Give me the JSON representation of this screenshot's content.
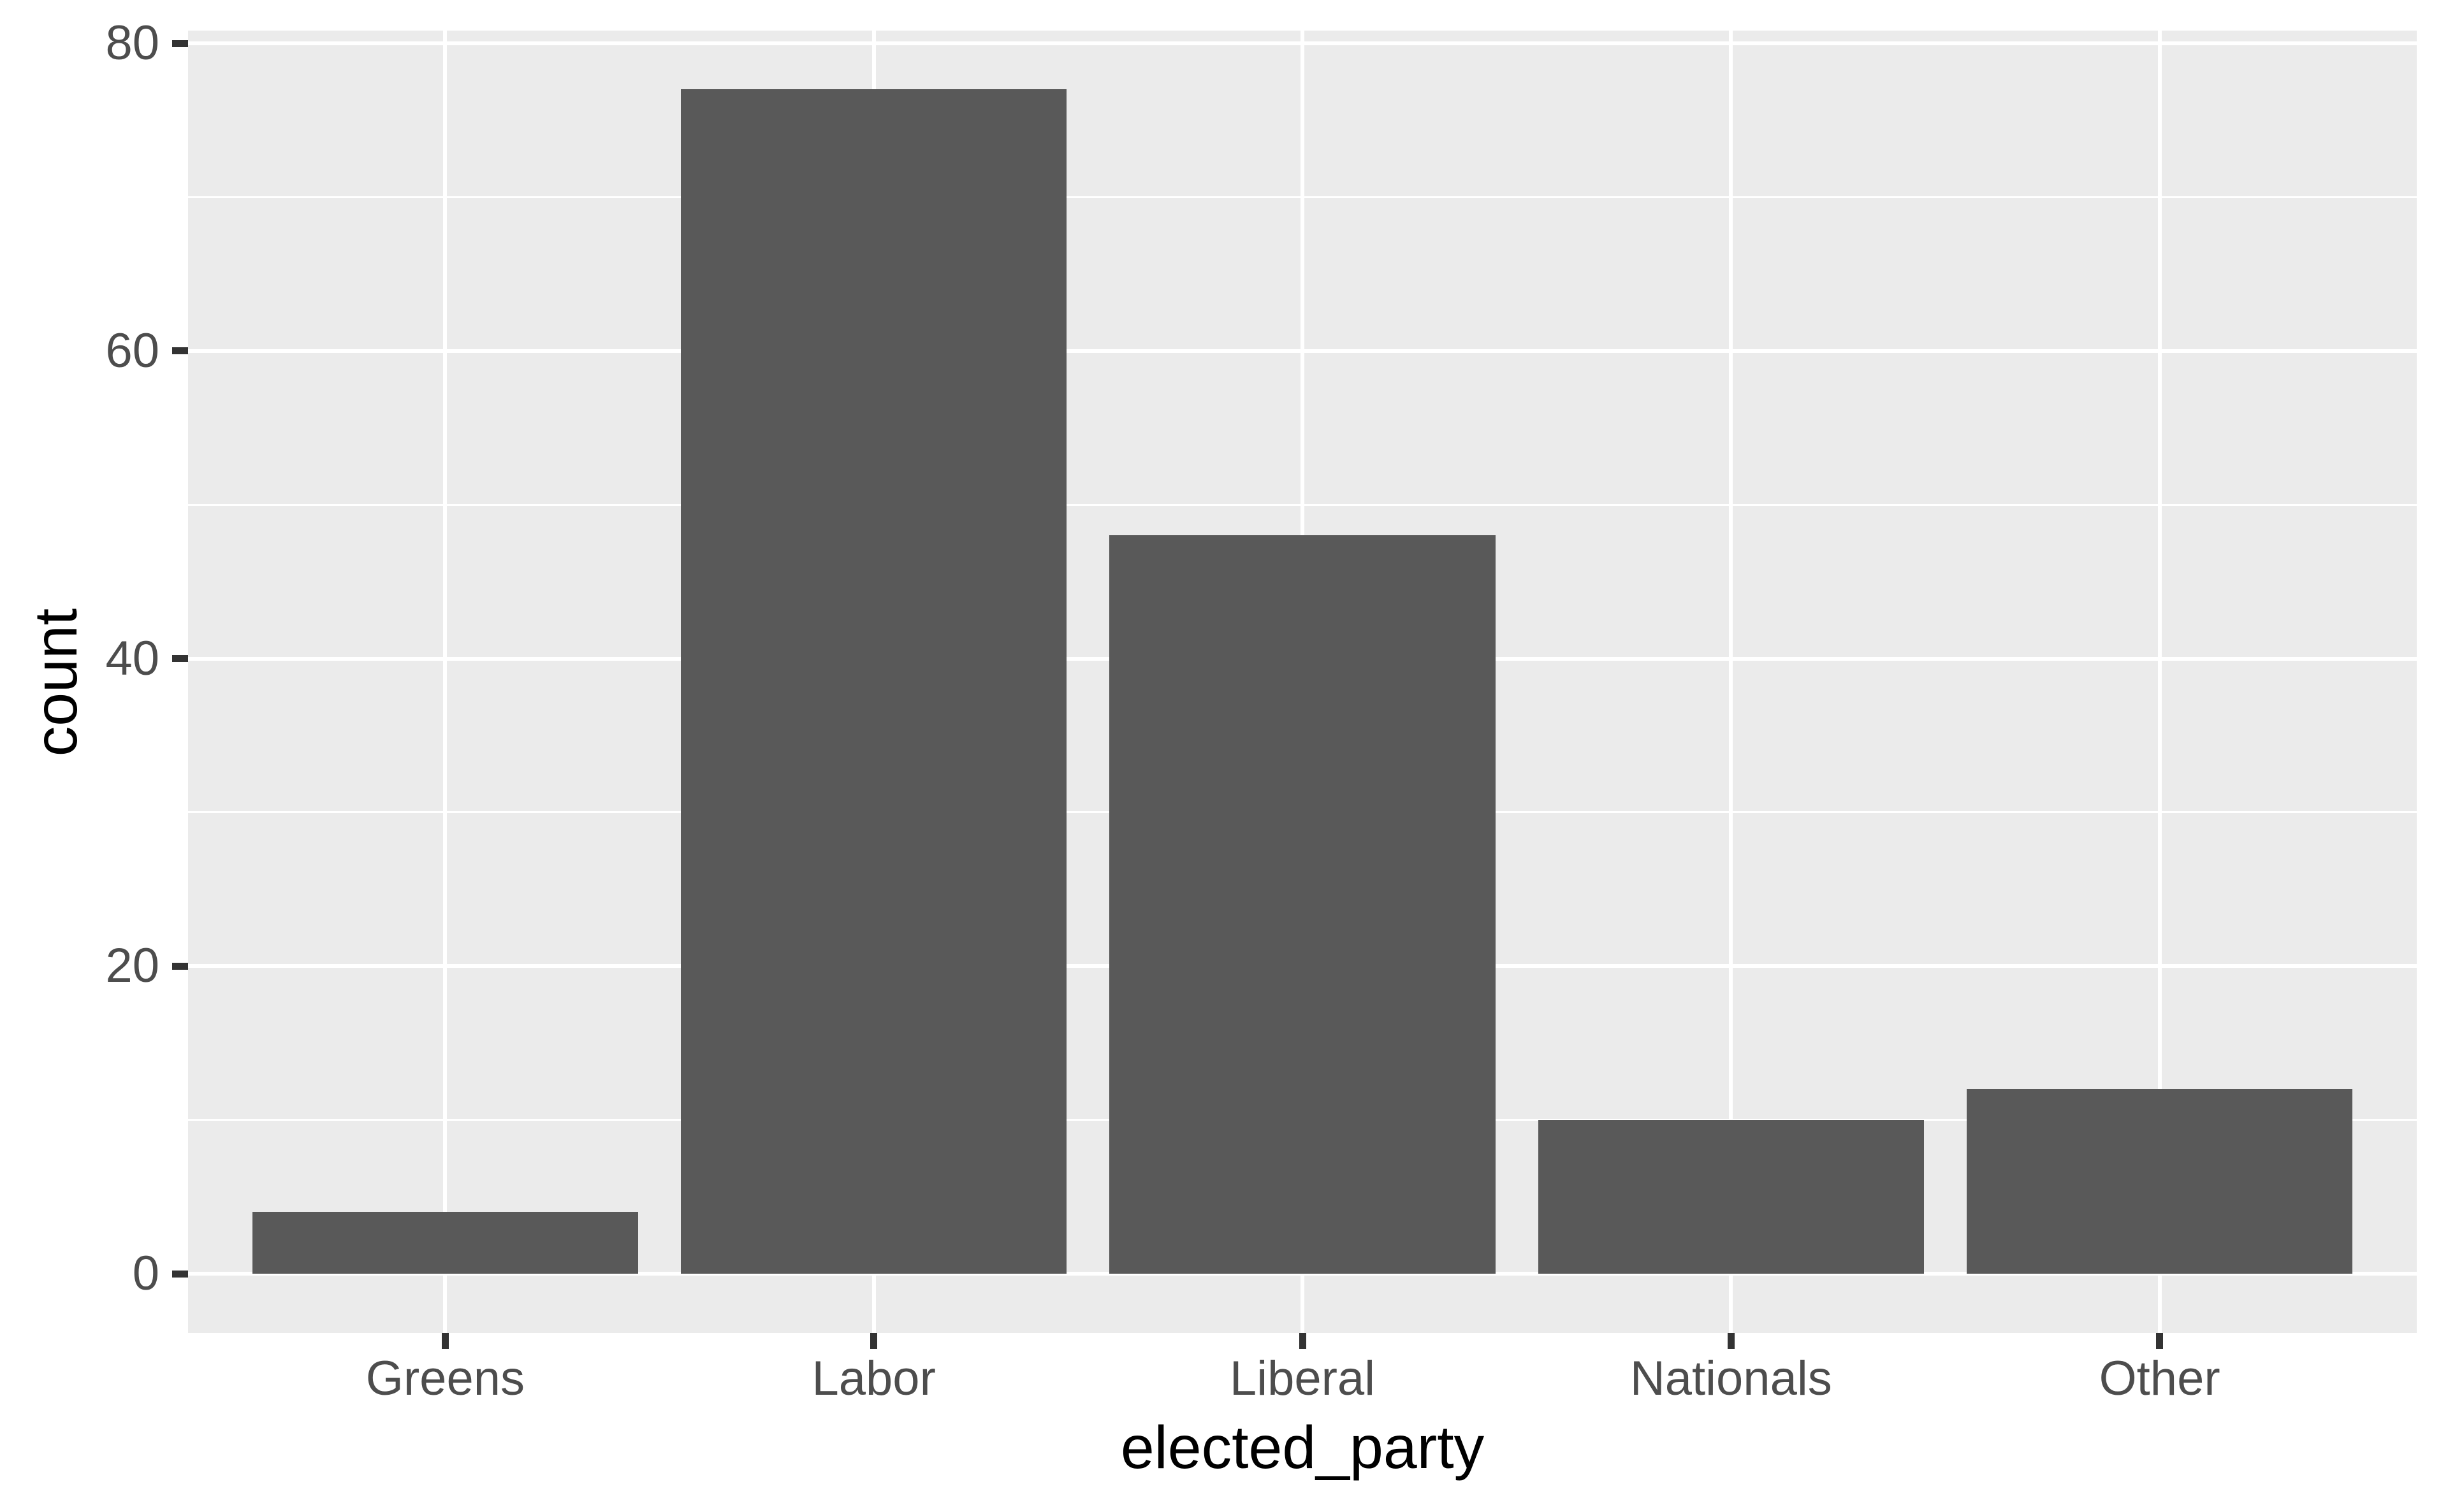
{
  "chart_data": {
    "type": "bar",
    "title": "",
    "xlabel": "elected_party",
    "ylabel": "count",
    "categories": [
      "Greens",
      "Labor",
      "Liberal",
      "Nationals",
      "Other"
    ],
    "values": [
      4,
      77,
      48,
      10,
      12
    ],
    "y_major_ticks": [
      0,
      20,
      40,
      60,
      80
    ],
    "y_minor_ticks": [
      10,
      30,
      50,
      70
    ],
    "ylim": [
      -3.85,
      80.85
    ],
    "grid": "on",
    "legend": "none",
    "theme": "ggplot2-grey"
  },
  "style": {
    "bar_fill": "#595959",
    "panel_bg": "#EBEBEB",
    "grid_color": "#FFFFFF",
    "axis_tick_color": "#333333",
    "tick_label_color": "#4D4D4D",
    "axis_title_color": "#000000",
    "plot_bg": "#FFFFFF"
  }
}
